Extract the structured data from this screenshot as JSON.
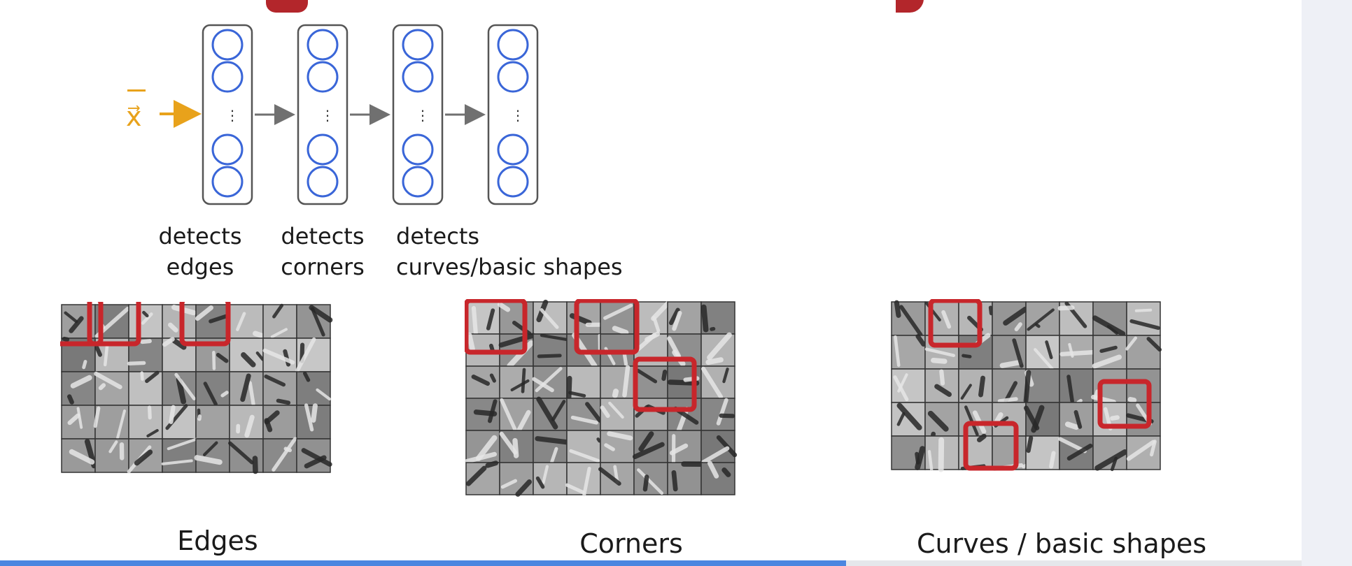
{
  "input_label": "x⃗",
  "layer_captions": [
    {
      "line1": "detects",
      "line2": "edges"
    },
    {
      "line1": "detects",
      "line2": "corners"
    },
    {
      "line1": "detects",
      "line2": "curves/basic shapes"
    }
  ],
  "panels": [
    {
      "caption": "Edges"
    },
    {
      "caption": "Corners"
    },
    {
      "caption": "Curves / basic shapes"
    }
  ],
  "colors": {
    "neuron_stroke": "#3a66d8",
    "input_arrow": "#e8a21b",
    "highlight": "#c8262b",
    "title_red": "#b3262b",
    "progress": "#4b86e0"
  },
  "progress": 0.65
}
